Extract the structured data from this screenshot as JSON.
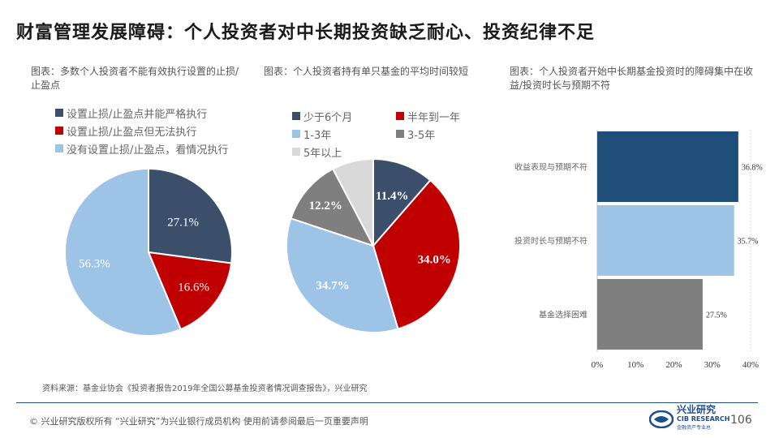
{
  "title": "财富管理发展障碍：个人投资者对中长期投资缺乏耐心、投资纪律不足",
  "charts": {
    "pie1": {
      "caption": "图表：多数个人投资者不能有效执行设置的止损/止盈点"
    },
    "pie2": {
      "caption": "图表：个人投资者持有单只基金的平均时间较短"
    },
    "bar": {
      "caption": "图表：个人投资者开始中长期基金投资时的障碍集中在收益/投资时长与预期不符"
    }
  },
  "chart_data": [
    {
      "type": "pie",
      "title": "",
      "slices": [
        {
          "label": "设置止损/止盈点并能严格执行",
          "value": 27.1,
          "display": "27.1%",
          "color": "#3b4f6b"
        },
        {
          "label": "设置止损/止盈点但无法执行",
          "value": 16.6,
          "display": "16.6%",
          "color": "#c00000"
        },
        {
          "label": "没有设置止损/止盈点，看情况执行",
          "value": 56.3,
          "display": "56.3%",
          "color": "#9dc3e6"
        }
      ]
    },
    {
      "type": "pie",
      "title": "",
      "slices": [
        {
          "label": "少于6个月",
          "value": 11.4,
          "display": "11.4%",
          "color": "#3b4f6b"
        },
        {
          "label": "半年到一年",
          "value": 34.0,
          "display": "34.0%",
          "color": "#c00000"
        },
        {
          "label": "1-3年",
          "value": 34.7,
          "display": "34.7%",
          "color": "#9dc3e6"
        },
        {
          "label": "3-5年",
          "value": 12.2,
          "display": "12.2%",
          "color": "#7f7f7f"
        },
        {
          "label": "5年以上",
          "value": 7.7,
          "display": "",
          "color": "#d9d9d9"
        }
      ]
    },
    {
      "type": "bar",
      "orientation": "horizontal",
      "categories": [
        "收益表现与预期不符",
        "投资时长与预期不符",
        "基金选择困难"
      ],
      "values": [
        36.8,
        35.7,
        27.5
      ],
      "value_labels": [
        "36.8%",
        "35.7%",
        "27.5%"
      ],
      "colors": [
        "#1f4e79",
        "#9dc3e6",
        "#7f7f7f"
      ],
      "xlim": [
        0,
        40
      ],
      "xticks": [
        "0%",
        "10%",
        "20%",
        "30%",
        "40%"
      ]
    }
  ],
  "source": "资料来源：基金业协会《投资者报告2019年全国公募基金投资者情况调查报告》，兴业研究",
  "footer": "©  兴业研究版权所有    “兴业研究”为兴业银行成员机构    使用前请参阅最后一页重要声明",
  "logo": {
    "cn": "兴业研究",
    "en": "CIB RESEARCH",
    "sub": "金融资产专业总",
    "icon": "cib-logo-icon"
  },
  "page_number": "106"
}
